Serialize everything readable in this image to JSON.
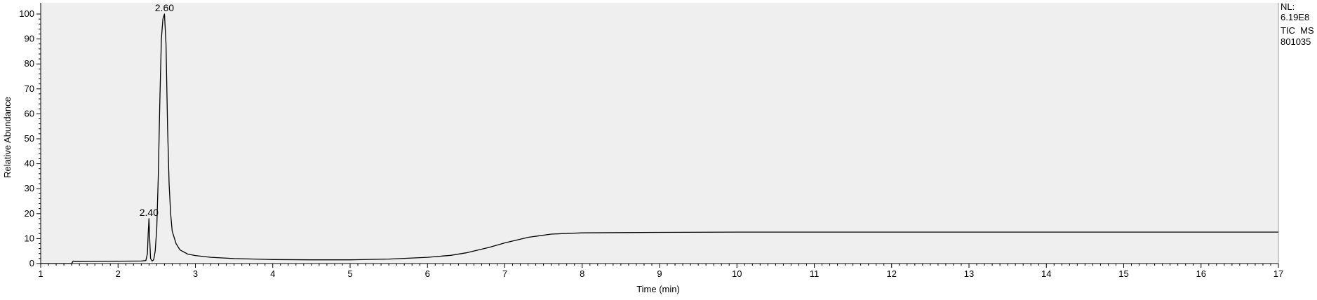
{
  "chart_data": {
    "type": "line",
    "xlabel": "Time (min)",
    "ylabel": "Relative Abundance",
    "xlim": [
      1,
      17
    ],
    "ylim": [
      0,
      100
    ],
    "x_ticks": [
      "1",
      "2",
      "3",
      "4",
      "5",
      "6",
      "7",
      "8",
      "9",
      "10",
      "11",
      "12",
      "13",
      "14",
      "15",
      "16",
      "17"
    ],
    "y_ticks": [
      "0",
      "10",
      "20",
      "30",
      "40",
      "50",
      "60",
      "70",
      "80",
      "90",
      "100"
    ],
    "grid": false,
    "peak_labels": [
      "2.40",
      "2.60"
    ],
    "info": {
      "nl_label": "NL:",
      "nl_value": "6.19E8",
      "trace": "TIC  MS",
      "sample": "801035"
    },
    "series": [
      {
        "x": [
          1.0,
          1.4,
          1.42,
          1.44,
          2.3,
          2.36,
          2.38,
          2.39,
          2.4,
          2.41,
          2.42,
          2.44,
          2.46,
          2.48,
          2.5,
          2.52,
          2.54,
          2.56,
          2.58,
          2.6,
          2.62,
          2.64,
          2.66,
          2.68,
          2.7,
          2.75,
          2.8,
          2.9,
          3.0,
          3.2,
          3.5,
          4.0,
          4.5,
          5.0,
          5.5,
          6.0,
          6.3,
          6.5,
          6.8,
          7.0,
          7.3,
          7.6,
          8.0,
          9.0,
          10.0,
          11.0,
          12.0,
          13.0,
          14.0,
          15.0,
          16.0,
          17.0
        ],
        "values": [
          0,
          0,
          1.0,
          0.8,
          1.0,
          1.2,
          4,
          12,
          18,
          9,
          2,
          1,
          1.5,
          5,
          14,
          35,
          65,
          90,
          98,
          100,
          88,
          55,
          32,
          20,
          13,
          8,
          5.5,
          3.8,
          3.2,
          2.5,
          2.0,
          1.6,
          1.5,
          1.5,
          1.8,
          2.5,
          3.3,
          4.3,
          6.5,
          8.3,
          10.5,
          11.8,
          12.3,
          12.5,
          12.6,
          12.6,
          12.6,
          12.6,
          12.6,
          12.6,
          12.6,
          12.6
        ]
      }
    ]
  }
}
